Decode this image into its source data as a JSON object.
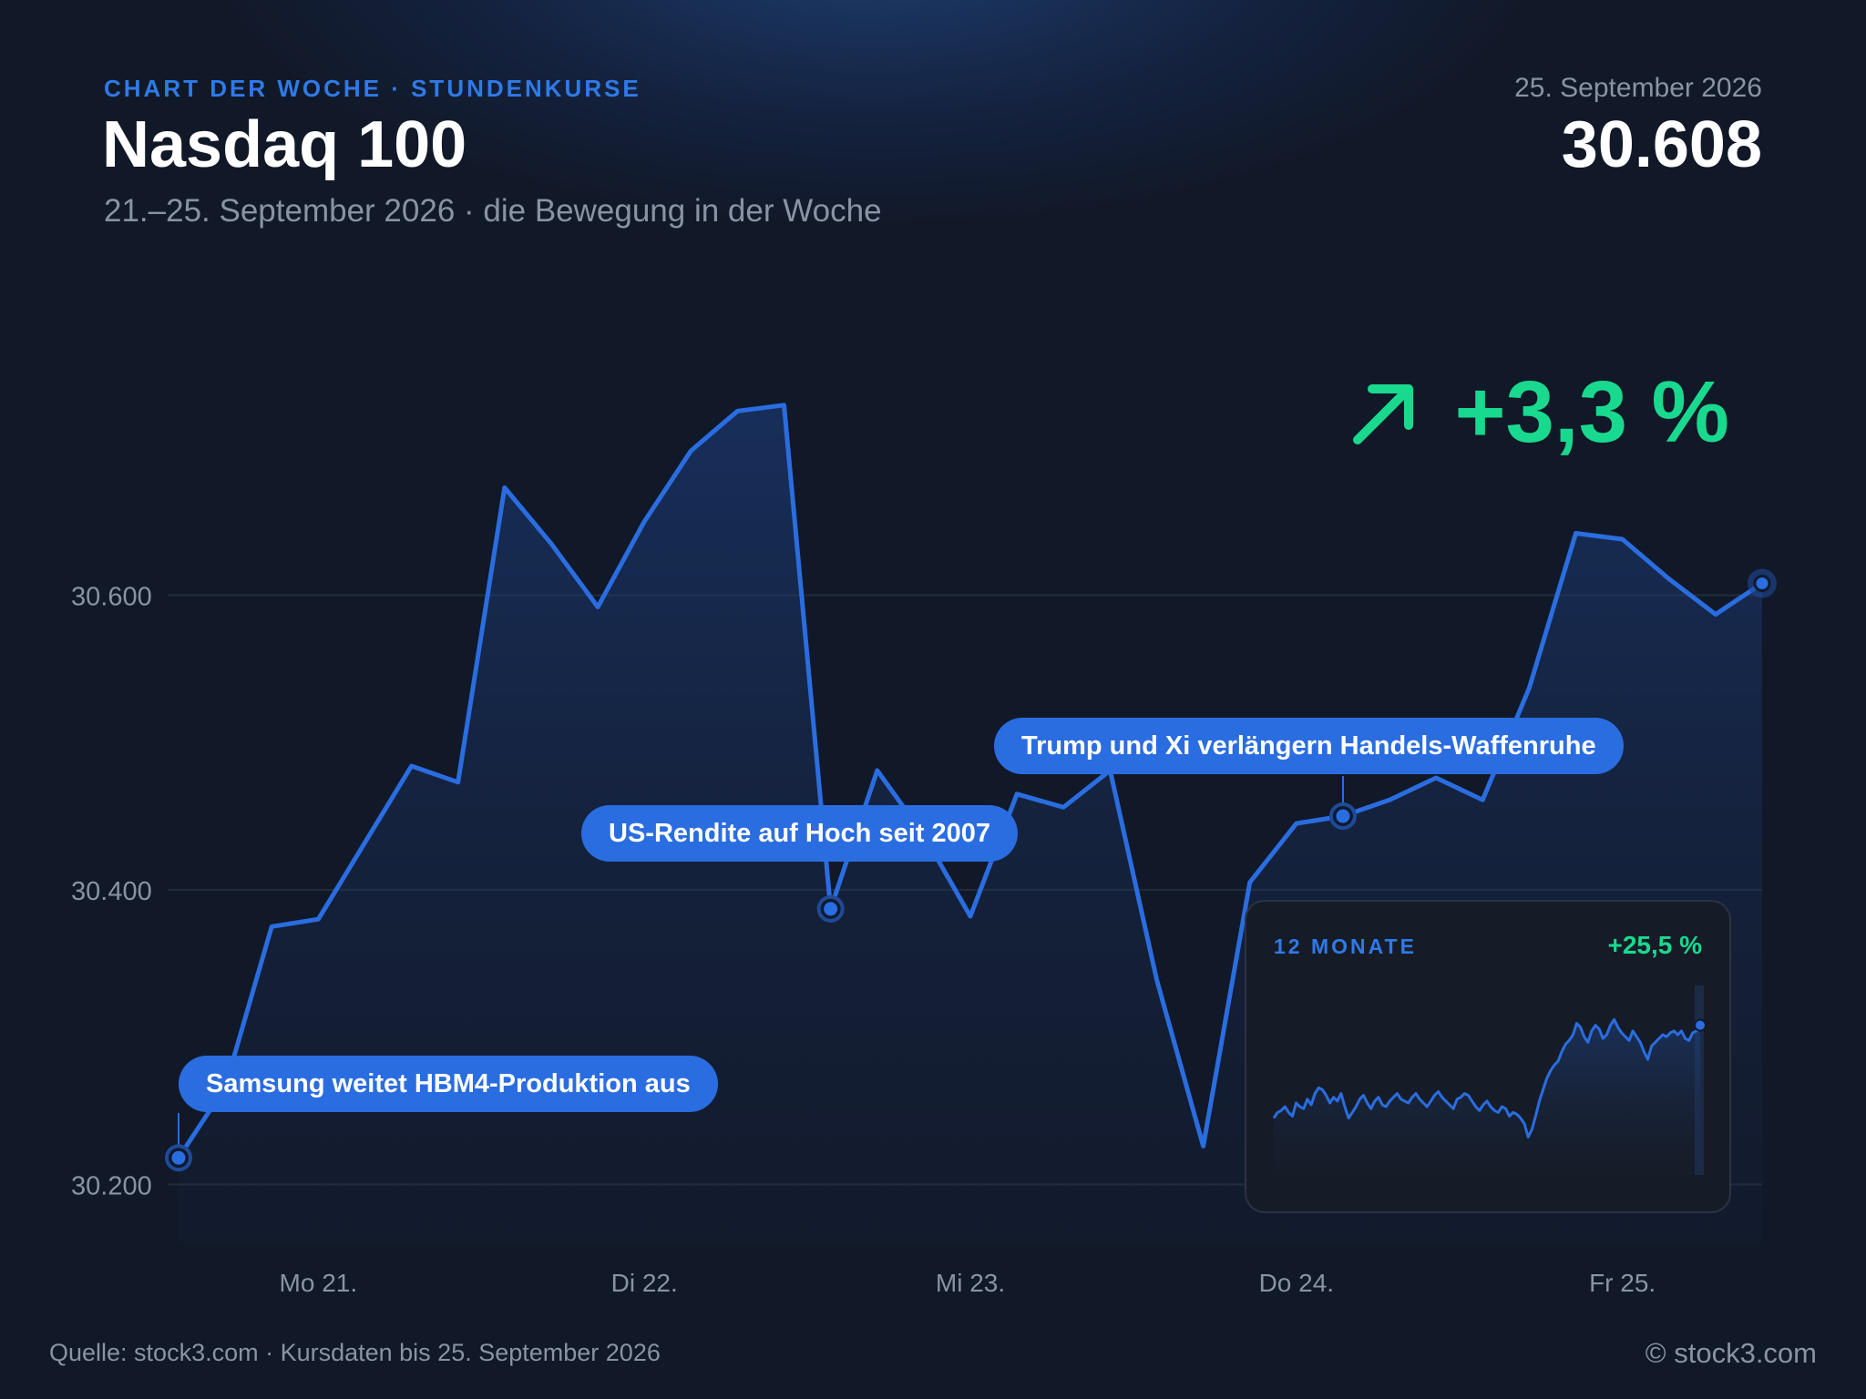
{
  "header": {
    "kicker": "CHART DER WOCHE · STUNDENKURSE",
    "title": "Nasdaq 100",
    "subtitle": "21.–25. September 2026 · die Bewegung in der Woche",
    "date": "25. September 2026",
    "price": "30.608",
    "change": "+3,3 %"
  },
  "colors": {
    "line": "#2a6de0",
    "positive": "#19d98f",
    "background": "#111827"
  },
  "chart_data": {
    "type": "line",
    "ylim": [
      30160,
      30800
    ],
    "yticks": [
      30200,
      30400,
      30600
    ],
    "ytick_labels": [
      "30.200",
      "30.400",
      "30.600"
    ],
    "xticks": [
      {
        "x": 3,
        "label": "Mo 21."
      },
      {
        "x": 10,
        "label": "Di 22."
      },
      {
        "x": 17,
        "label": "Mi 23."
      },
      {
        "x": 24,
        "label": "Do 24."
      },
      {
        "x": 31,
        "label": "Fr 25."
      }
    ],
    "grid": true,
    "series": [
      {
        "x": [
          0,
          1,
          2,
          3,
          4,
          5,
          6,
          7,
          8,
          9,
          10,
          11,
          12,
          13,
          14,
          15,
          16,
          17,
          18,
          19,
          20,
          21,
          22,
          23,
          24,
          25,
          26,
          27,
          28,
          29,
          30,
          31,
          32,
          33,
          34
        ],
        "y": [
          30218,
          30266,
          30375,
          30380,
          30432,
          30484,
          30473,
          30673,
          30635,
          30592,
          30650,
          30698,
          30725,
          30729,
          30387,
          30481,
          30437,
          30382,
          30465,
          30456,
          30481,
          30339,
          30226,
          30405,
          30445,
          30450,
          30461,
          30476,
          30461,
          30537,
          30642,
          30638,
          30611,
          30587,
          30608
        ]
      }
    ],
    "annotations": [
      {
        "x": 0,
        "y": 30218,
        "text": "Samsung weitet HBM4-Produktion aus"
      },
      {
        "x": 14,
        "y": 30387,
        "text": "US-Rendite auf Hoch seit 2007"
      },
      {
        "x": 25,
        "y": 30450,
        "text": "Trump und Xi verlängern Handels-Waffenruhe"
      }
    ],
    "inset": {
      "label": "12 MONATE",
      "change": "+25,5 %",
      "type": "line",
      "ylim": [
        0,
        100
      ],
      "values": [
        30,
        33,
        34,
        36,
        33,
        31,
        38,
        36,
        35,
        40,
        37,
        43,
        46,
        45,
        42,
        38,
        41,
        39,
        43,
        36,
        30,
        33,
        36,
        40,
        42,
        38,
        35,
        39,
        41,
        37,
        36,
        39,
        41,
        43,
        40,
        39,
        38,
        41,
        43,
        40,
        38,
        36,
        39,
        42,
        44,
        41,
        39,
        37,
        35,
        40,
        41,
        43,
        42,
        39,
        36,
        34,
        37,
        39,
        36,
        34,
        33,
        36,
        35,
        31,
        33,
        32,
        30,
        27,
        20,
        24,
        31,
        39,
        45,
        51,
        55,
        58,
        60,
        65,
        69,
        71,
        74,
        80,
        78,
        73,
        70,
        76,
        79,
        77,
        72,
        74,
        79,
        82,
        78,
        75,
        73,
        71,
        76,
        73,
        70,
        65,
        61,
        68,
        70,
        72,
        74,
        73,
        75,
        76,
        74,
        76,
        72,
        71,
        75,
        76,
        79
      ]
    }
  },
  "footer": {
    "source": "Quelle: stock3.com · Kursdaten bis 25. September 2026",
    "copyright": "© stock3.com"
  }
}
